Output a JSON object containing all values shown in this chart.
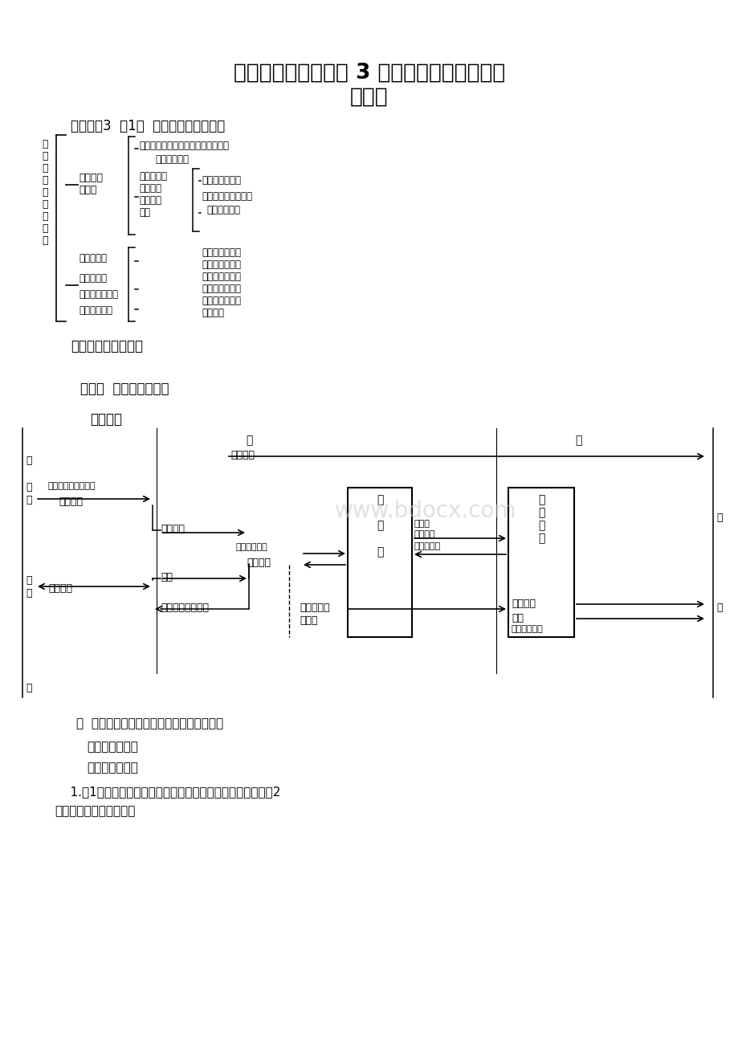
{
  "bg_color": "#ffffff",
  "title_line1": "学年度高中生物必修 3 人教版教材中所有问题",
  "title_line2": "的答案",
  "chapter_header": "生物必修3  第1章  人体的内环境和稳态",
  "section1_header": "一、教学内容的结构",
  "section2_header": "第一节  细胞生活的环境",
  "section3_header": "一、资料",
  "fig_caption": "图  体内细胞与外界环境进行物质交换的过程",
  "answer_header": "二、答案和提示",
  "problem_header": "（一）问题探讨",
  "body_text1": "    1.图1中是人体血液中的血细胞，包括红细胞、白细胞等；图2",
  "body_text2": "中是单细胞动物草履虫。",
  "watermark": "www.bdocx.com"
}
